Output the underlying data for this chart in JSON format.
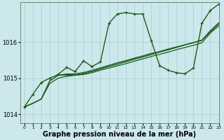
{
  "background_color": "#cce8ec",
  "grid_color": "#aacccc",
  "line_color": "#1a5c1a",
  "xlabel": "Graphe pression niveau de la mer (hPa)",
  "xlabel_fontsize": 7,
  "ylim": [
    1013.75,
    1017.1
  ],
  "xlim": [
    -0.5,
    23
  ],
  "yticks": [
    1014,
    1015,
    1016
  ],
  "xticks": [
    0,
    1,
    2,
    3,
    4,
    5,
    6,
    7,
    8,
    9,
    10,
    11,
    12,
    13,
    14,
    15,
    16,
    17,
    18,
    19,
    20,
    21,
    22,
    23
  ],
  "x": [
    0,
    1,
    2,
    3,
    4,
    5,
    6,
    7,
    8,
    9,
    10,
    11,
    12,
    13,
    14,
    15,
    16,
    17,
    18,
    19,
    20,
    21,
    22,
    23
  ],
  "y_main": [
    1014.2,
    1014.55,
    1014.88,
    1015.0,
    1015.1,
    1015.3,
    1015.18,
    1015.48,
    1015.32,
    1015.45,
    1016.52,
    1016.78,
    1016.82,
    1016.78,
    1016.78,
    1016.05,
    1015.35,
    1015.22,
    1015.15,
    1015.12,
    1015.28,
    1016.52,
    1016.88,
    1017.05
  ],
  "y_trend1": [
    1014.2,
    1014.3,
    1014.42,
    1014.92,
    1015.08,
    1015.08,
    1015.08,
    1015.12,
    1015.18,
    1015.25,
    1015.32,
    1015.38,
    1015.45,
    1015.52,
    1015.58,
    1015.65,
    1015.72,
    1015.78,
    1015.85,
    1015.92,
    1015.98,
    1016.05,
    1016.28,
    1016.5
  ],
  "y_trend2": [
    1014.2,
    1014.3,
    1014.42,
    1014.92,
    1015.08,
    1015.1,
    1015.1,
    1015.14,
    1015.2,
    1015.27,
    1015.34,
    1015.41,
    1015.47,
    1015.54,
    1015.6,
    1015.67,
    1015.73,
    1015.8,
    1015.86,
    1015.92,
    1015.98,
    1016.04,
    1016.3,
    1016.52
  ],
  "y_trend3": [
    1014.2,
    1014.3,
    1014.42,
    1014.92,
    1015.08,
    1015.12,
    1015.12,
    1015.16,
    1015.22,
    1015.29,
    1015.36,
    1015.43,
    1015.49,
    1015.56,
    1015.62,
    1015.69,
    1015.74,
    1015.81,
    1015.87,
    1015.93,
    1015.99,
    1016.06,
    1016.32,
    1016.54
  ],
  "y_straight": [
    1014.2,
    1014.3,
    1014.42,
    1014.85,
    1015.0,
    1015.05,
    1015.08,
    1015.1,
    1015.15,
    1015.22,
    1015.28,
    1015.34,
    1015.4,
    1015.47,
    1015.53,
    1015.6,
    1015.66,
    1015.72,
    1015.79,
    1015.85,
    1015.91,
    1015.98,
    1016.25,
    1016.45
  ]
}
